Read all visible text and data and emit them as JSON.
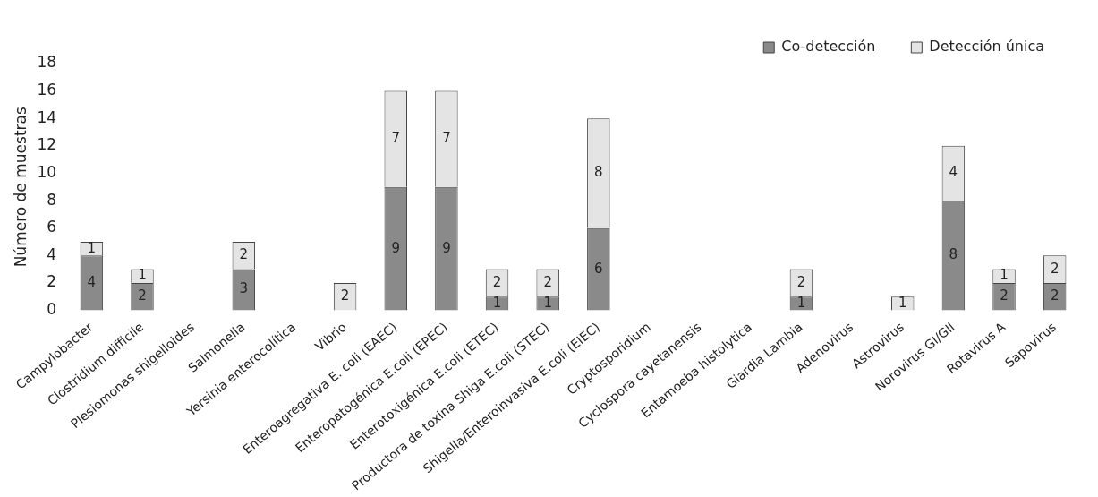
{
  "chart_data": {
    "type": "bar",
    "stacked": true,
    "ylabel": "Número de muestras",
    "categories": [
      "Campylobacter",
      "Clostridium difficile",
      "Plesiomonas shigelloides",
      "Salmonella",
      "Yersinia enterocolítica",
      "Vibrio",
      "Enteroagregativa E. coli (EAEC)",
      "Enteropatogénica E.coli (EPEC)",
      "Enterotoxigénica E.coli (ETEC)",
      "Productora de toxina Shiga E.coli (STEC)",
      "Shigella/Enteroinvasiva E.coli (EIEC)",
      "Cryptosporidium",
      "Cyclospora cayetanensis",
      "Entamoeba histolytica",
      "Giardia Lambia",
      "Adenovirus",
      "Astrovirus",
      "Norovirus GI/GII",
      "Rotavirus A",
      "Sapovirus"
    ],
    "series": [
      {
        "name": "Co-detección",
        "color": "#8a8a8a",
        "values": [
          4,
          2,
          null,
          3,
          null,
          null,
          9,
          9,
          1,
          1,
          6,
          null,
          null,
          null,
          1,
          null,
          null,
          8,
          2,
          2
        ]
      },
      {
        "name": "Detección única",
        "color": "#e4e4e4",
        "values": [
          1,
          1,
          null,
          2,
          null,
          2,
          7,
          7,
          2,
          2,
          8,
          null,
          null,
          null,
          2,
          null,
          1,
          4,
          1,
          2
        ]
      }
    ],
    "ylim": [
      0,
      18
    ],
    "yticks": [
      0,
      2,
      4,
      6,
      8,
      10,
      12,
      14,
      16,
      18
    ],
    "grid": false,
    "legend": "top right",
    "data_labels": true
  }
}
